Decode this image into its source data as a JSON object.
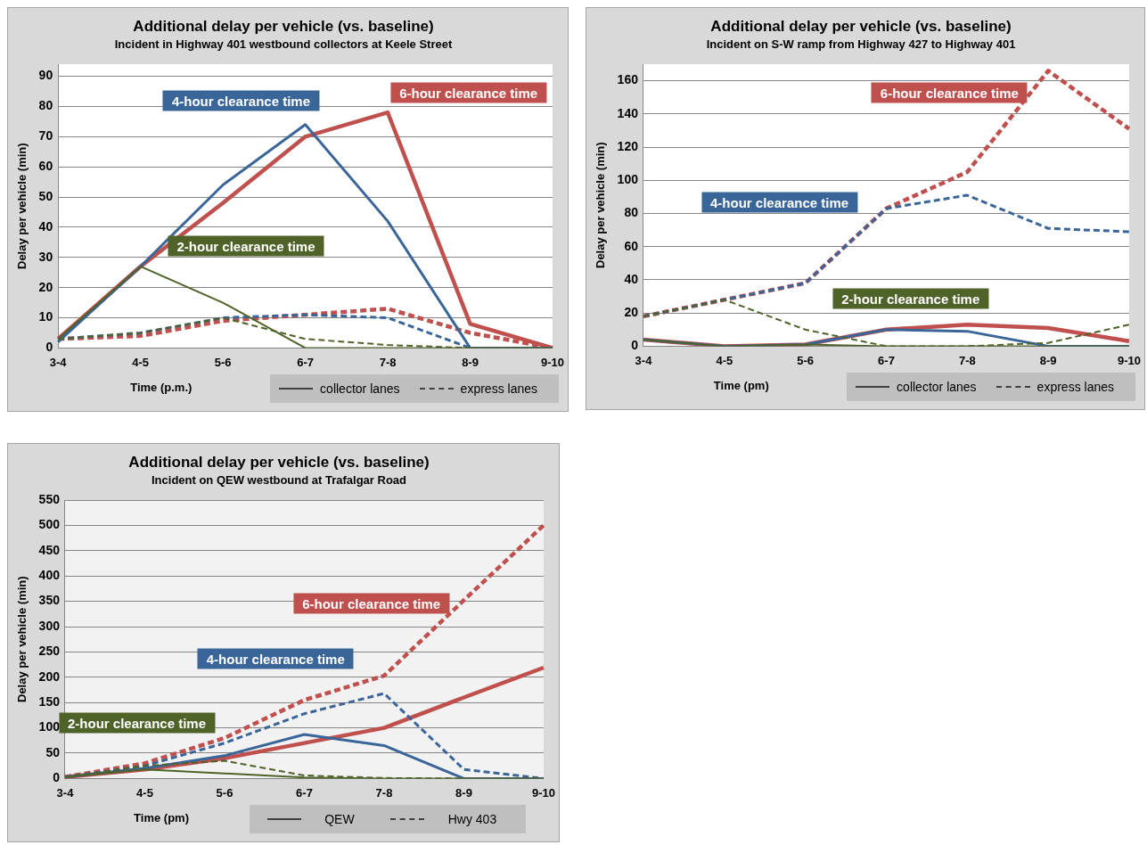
{
  "chart_data": [
    {
      "type": "line",
      "title": "Additional delay per vehicle (vs. baseline)",
      "subtitle": "Incident in Highway 401 westbound collectors at Keele Street",
      "xlabel": "Time (p.m.)",
      "ylabel": "Delay per vehicle (min)",
      "categories": [
        "3-4",
        "4-5",
        "5-6",
        "6-7",
        "7-8",
        "8-9",
        "9-10"
      ],
      "ylim": [
        0,
        94
      ],
      "yticks": [
        0,
        10,
        20,
        30,
        40,
        50,
        60,
        70,
        80,
        90
      ],
      "grid": "y",
      "marker": "none",
      "annotations": [
        "collector lanes",
        "express lanes"
      ],
      "series": [
        {
          "name": "2-hour clearance time",
          "color": "#4f6228",
          "line_style": "solid",
          "values": [
            3,
            27,
            15,
            0,
            0,
            0,
            0
          ]
        },
        {
          "name": "4-hour clearance time",
          "color": "#3a6599",
          "line_style": "solid",
          "values": [
            2,
            27,
            54,
            74,
            42,
            0,
            0
          ]
        },
        {
          "name": "6-hour clearance time",
          "color": "#c0504d",
          "line_style": "solid",
          "values": [
            3,
            27,
            48,
            70,
            78,
            8,
            0
          ]
        },
        {
          "color": "#4f6228",
          "line_style": "dashed",
          "values": [
            3,
            5,
            10,
            3,
            1,
            0,
            0
          ]
        },
        {
          "color": "#3a6599",
          "line_style": "dashed",
          "values": [
            3,
            5,
            10,
            11,
            10,
            0,
            0
          ]
        },
        {
          "color": "#c0504d",
          "line_style": "dashed",
          "values": [
            3,
            4,
            9,
            11,
            13,
            5,
            0
          ]
        }
      ]
    },
    {
      "type": "line",
      "title": "Additional delay per vehicle (vs. baseline)",
      "subtitle": "Incident on S-W ramp from Highway 427 to Highway 401",
      "xlabel": "Time (pm)",
      "ylabel": "Delay per vehicle (min)",
      "categories": [
        "3-4",
        "4-5",
        "5-6",
        "6-7",
        "7-8",
        "8-9",
        "9-10"
      ],
      "ylim": [
        0,
        170
      ],
      "yticks": [
        0,
        20,
        40,
        60,
        80,
        100,
        120,
        140,
        160
      ],
      "grid": "y",
      "marker": "none",
      "annotations": [
        "collector lanes",
        "express lanes"
      ],
      "series": [
        {
          "name": "2-hour clearance time",
          "color": "#4f6228",
          "line_style": "solid",
          "values": [
            4,
            0,
            1,
            0,
            0,
            0,
            0
          ]
        },
        {
          "name": "4-hour clearance time",
          "color": "#3a6599",
          "line_style": "solid",
          "values": [
            4,
            0,
            1,
            10,
            9,
            0,
            0
          ]
        },
        {
          "name": "6-hour clearance time",
          "color": "#c0504d",
          "line_style": "solid",
          "values": [
            4,
            0,
            1,
            10,
            13,
            11,
            3
          ]
        },
        {
          "color": "#4f6228",
          "line_style": "dashed",
          "values": [
            18,
            28,
            10,
            0,
            0,
            2,
            13
          ]
        },
        {
          "color": "#3a6599",
          "line_style": "dashed",
          "values": [
            18,
            28,
            38,
            83,
            91,
            71,
            69
          ]
        },
        {
          "color": "#c0504d",
          "line_style": "dashed",
          "values": [
            18,
            28,
            38,
            83,
            105,
            166,
            131
          ]
        }
      ]
    },
    {
      "type": "line",
      "title": "Additional delay per vehicle (vs. baseline)",
      "subtitle": "Incident on QEW westbound at Trafalgar Road",
      "xlabel": "Time (pm)",
      "ylabel": "Delay per vehicle (min)",
      "categories": [
        "3-4",
        "4-5",
        "5-6",
        "6-7",
        "7-8",
        "8-9",
        "9-10"
      ],
      "ylim": [
        0,
        550
      ],
      "yticks": [
        0,
        50,
        100,
        150,
        200,
        250,
        300,
        350,
        400,
        450,
        500,
        550
      ],
      "grid": "y",
      "marker": "none",
      "annotations": [
        "QEW",
        "Hwy 403"
      ],
      "series": [
        {
          "name": "2-hour clearance time",
          "color": "#4f6228",
          "line_style": "solid",
          "values": [
            3,
            18,
            10,
            2,
            0,
            0,
            0
          ]
        },
        {
          "name": "4-hour clearance time",
          "color": "#3a6599",
          "line_style": "solid",
          "values": [
            3,
            20,
            45,
            87,
            65,
            0,
            0
          ]
        },
        {
          "name": "6-hour clearance time",
          "color": "#c0504d",
          "line_style": "solid",
          "values": [
            3,
            18,
            40,
            70,
            100,
            160,
            219
          ]
        },
        {
          "color": "#4f6228",
          "line_style": "dashed",
          "values": [
            3,
            25,
            35,
            6,
            1,
            0,
            0
          ]
        },
        {
          "color": "#3a6599",
          "line_style": "dashed",
          "values": [
            3,
            25,
            70,
            128,
            168,
            18,
            0
          ]
        },
        {
          "color": "#c0504d",
          "line_style": "dashed",
          "values": [
            3,
            30,
            80,
            155,
            203,
            352,
            500
          ]
        }
      ]
    }
  ]
}
